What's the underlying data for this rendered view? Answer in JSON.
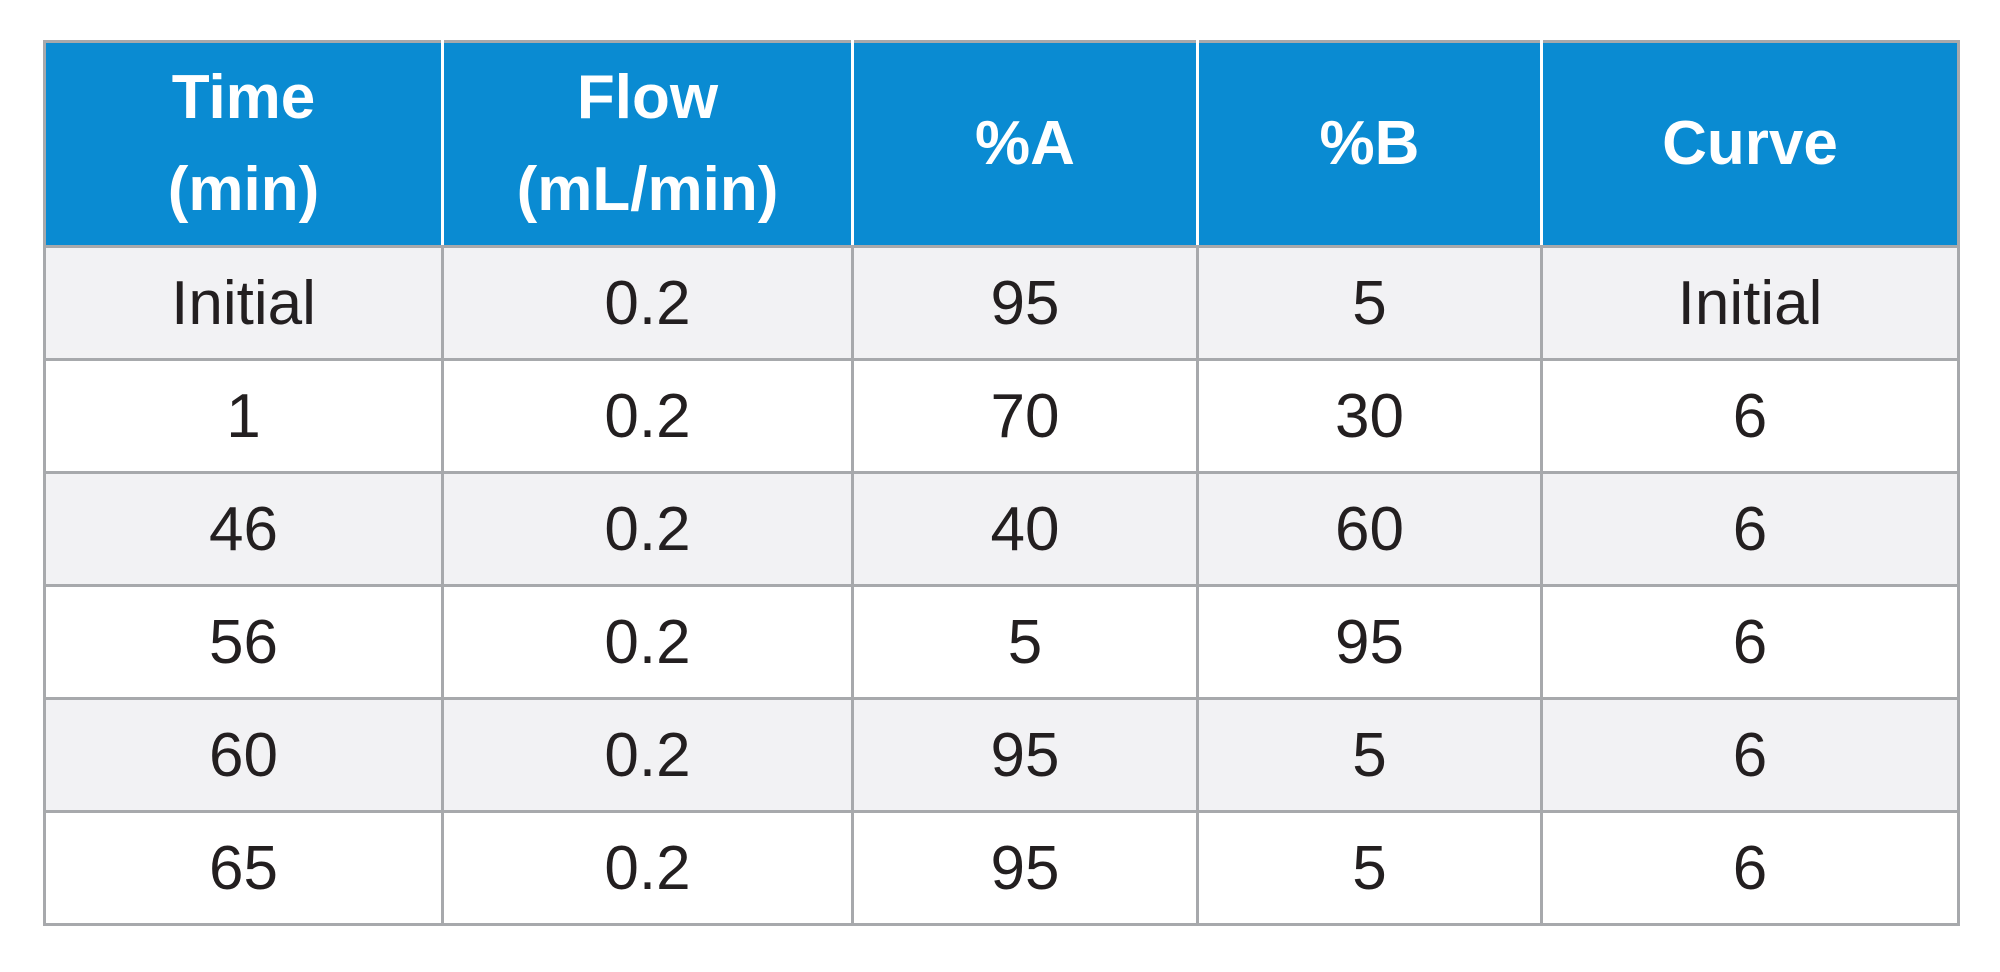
{
  "table": {
    "headers": [
      {
        "line1": "Time",
        "line2": "(min)"
      },
      {
        "line1": "Flow",
        "line2": "(mL/min)"
      },
      {
        "line1": "%A",
        "line2": ""
      },
      {
        "line1": "%B",
        "line2": ""
      },
      {
        "line1": "Curve",
        "line2": ""
      }
    ],
    "rows": [
      [
        "Initial",
        "0.2",
        "95",
        "5",
        "Initial"
      ],
      [
        "1",
        "0.2",
        "70",
        "30",
        "6"
      ],
      [
        "46",
        "0.2",
        "40",
        "60",
        "6"
      ],
      [
        "56",
        "0.2",
        "5",
        "95",
        "6"
      ],
      [
        "60",
        "0.2",
        "95",
        "5",
        "6"
      ],
      [
        "65",
        "0.2",
        "95",
        "5",
        "6"
      ]
    ]
  },
  "colors": {
    "header_background": "#0a8bd2",
    "header_text": "#ffffff",
    "shaded_row": "#f2f2f4",
    "border": "#a7a9ac",
    "body_text": "#231f20"
  }
}
